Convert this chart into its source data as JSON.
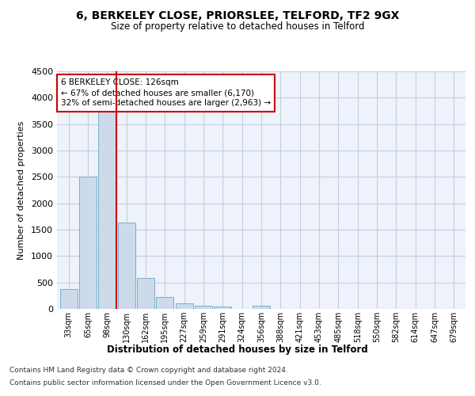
{
  "title": "6, BERKELEY CLOSE, PRIORSLEE, TELFORD, TF2 9GX",
  "subtitle": "Size of property relative to detached houses in Telford",
  "xlabel": "Distribution of detached houses by size in Telford",
  "ylabel": "Number of detached properties",
  "bar_color": "#ccdaea",
  "bar_edge_color": "#7aafcf",
  "background_color": "#eef2fa",
  "grid_color": "#c5cde0",
  "marker_line_color": "#cc0000",
  "annotation_text": "6 BERKELEY CLOSE: 126sqm\n← 67% of detached houses are smaller (6,170)\n32% of semi-detached houses are larger (2,963) →",
  "annotation_box_color": "#ffffff",
  "annotation_box_edge": "#cc0000",
  "categories": [
    "33sqm",
    "65sqm",
    "98sqm",
    "130sqm",
    "162sqm",
    "195sqm",
    "227sqm",
    "259sqm",
    "291sqm",
    "324sqm",
    "356sqm",
    "388sqm",
    "421sqm",
    "453sqm",
    "485sqm",
    "518sqm",
    "550sqm",
    "582sqm",
    "614sqm",
    "647sqm",
    "679sqm"
  ],
  "values": [
    370,
    2500,
    3750,
    1640,
    590,
    220,
    105,
    60,
    40,
    0,
    65,
    0,
    0,
    0,
    0,
    0,
    0,
    0,
    0,
    0,
    0
  ],
  "ylim": [
    0,
    4500
  ],
  "marker_bin_index": 3,
  "footnote1": "Contains HM Land Registry data © Crown copyright and database right 2024.",
  "footnote2": "Contains public sector information licensed under the Open Government Licence v3.0."
}
